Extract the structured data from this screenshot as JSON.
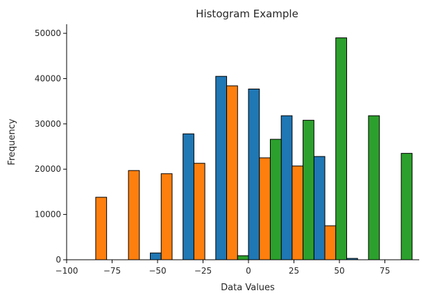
{
  "chart_data": {
    "type": "bar",
    "title": "Histogram Example",
    "xlabel": "Data Values",
    "ylabel": "Frequency",
    "xlim": [
      -100,
      100
    ],
    "ylim": [
      0,
      52000
    ],
    "x_ticks": [
      -100,
      -75,
      -50,
      -25,
      0,
      25,
      50,
      75
    ],
    "x_tick_labels": [
      "−100",
      "−75",
      "−50",
      "−25",
      "0",
      "25",
      "50",
      "75"
    ],
    "y_ticks": [
      0,
      10000,
      20000,
      30000,
      40000,
      50000
    ],
    "y_tick_labels": [
      "0",
      "10000",
      "20000",
      "30000",
      "40000",
      "50000"
    ],
    "bin_width": 18,
    "bin_lefts": [
      -90,
      -72,
      -54,
      -36,
      -18,
      0,
      18,
      36,
      54,
      72,
      90
    ],
    "grid": false,
    "series": [
      {
        "color": "#1f77b4",
        "values": [
          0,
          0,
          1500,
          27800,
          40500,
          37700,
          31800,
          22800,
          300,
          0,
          0
        ]
      },
      {
        "color": "#ff7f0e",
        "values": [
          13800,
          19700,
          19000,
          21300,
          38400,
          22500,
          20700,
          7500,
          0,
          0,
          0
        ]
      },
      {
        "color": "#2ca02c",
        "values": [
          0,
          0,
          0,
          0,
          900,
          26600,
          30800,
          49000,
          31800,
          23500,
          0
        ]
      }
    ]
  }
}
